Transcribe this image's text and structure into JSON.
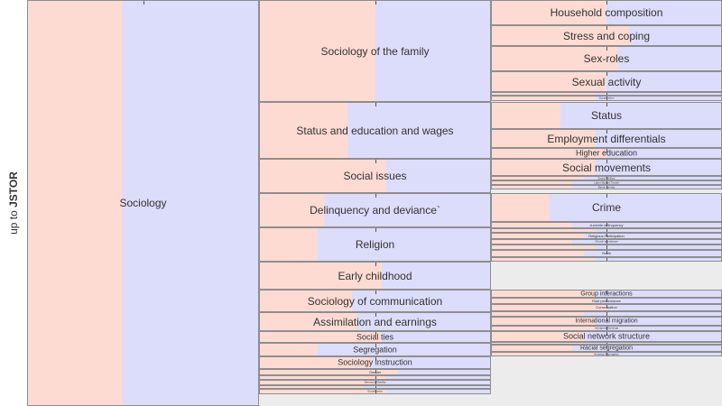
{
  "sidebar": {
    "prefix": "up to ",
    "source": "JSTOR"
  },
  "colors": {
    "pink": "#fddbd3",
    "lavender": "#dcdcfb",
    "border": "#8e8e8e"
  },
  "levels": [
    {
      "name": "level-1",
      "nodes": [
        {
          "label": "Sociology",
          "share": 0.41
        }
      ]
    },
    {
      "name": "level-2",
      "nodes": [
        {
          "label": "Sociology of the family",
          "share": 0.5
        },
        {
          "label": "Status and education and wages",
          "share": 0.38
        },
        {
          "label": "Social issues",
          "share": 0.55
        },
        {
          "label": "Delinquency and deviance`",
          "share": 0.28
        },
        {
          "label": "Religion",
          "share": 0.25
        },
        {
          "label": "Early childhood",
          "share": 0.53
        },
        {
          "label": "Sociology of communication",
          "share": 0.4
        },
        {
          "label": "Assimilation and earnings",
          "share": 0.42
        },
        {
          "label": "Social ties",
          "share": 0.53
        },
        {
          "label": "Segregation",
          "share": 0.25
        },
        {
          "label": "Sociology instruction",
          "share": 0.48
        },
        {
          "label": "Gender",
          "share": 0.6
        },
        {
          "label": "",
          "share": 0.55
        },
        {
          "label": "Structural Mobility",
          "share": 0.5
        },
        {
          "label": "",
          "share": 0.45
        },
        {
          "label": "Socialization",
          "share": 0.55
        }
      ]
    },
    {
      "name": "level-3",
      "nodes": [
        {
          "label": "Household composition",
          "share": 0.5
        },
        {
          "label": "Stress and coping",
          "share": 0.6
        },
        {
          "label": "Sex-roles",
          "share": 0.55
        },
        {
          "label": "Sexual activity",
          "share": 0.5
        },
        {
          "label": "",
          "share": 0.45
        },
        {
          "label": "Socialization",
          "share": 0.45
        },
        {
          "label": "Status",
          "share": 0.3
        },
        {
          "label": "Employment differentials",
          "share": 0.45
        },
        {
          "label": "Higher education",
          "share": 0.5
        },
        {
          "label": "Social movements",
          "share": 0.45
        },
        {
          "label": "Social Welfare",
          "share": 0.4
        },
        {
          "label": "Labor Market Trends",
          "share": 0.35
        },
        {
          "label": "Ethnic Identity",
          "share": 0.35
        },
        {
          "label": "Crime",
          "share": 0.25
        },
        {
          "label": "Juvenile delinquency",
          "share": 0.35
        },
        {
          "label": "",
          "share": 0.45
        },
        {
          "label": "Religious Participation",
          "share": 0.4
        },
        {
          "label": "Church attendance",
          "share": 0.35
        },
        {
          "label": "",
          "share": 0.45
        },
        {
          "label": "Sects",
          "share": 0.4
        },
        {
          "label": "",
          "share": 0.45
        },
        {
          "label": "Group interactions",
          "share": 0.45
        },
        {
          "label": "Role performance",
          "share": 0.45
        },
        {
          "label": "Conversation",
          "share": 0.5
        },
        {
          "label": "",
          "share": 0.4
        },
        {
          "label": "International migration",
          "share": 0.45
        },
        {
          "label": "Immigrant Earnings",
          "share": 0.45
        },
        {
          "label": "Social network structure",
          "share": 0.4
        },
        {
          "label": "",
          "share": 0.4
        },
        {
          "label": "Racial segregation",
          "share": 0.35
        },
        {
          "label": "Housing Segregation",
          "share": 0.45
        }
      ]
    }
  ]
}
